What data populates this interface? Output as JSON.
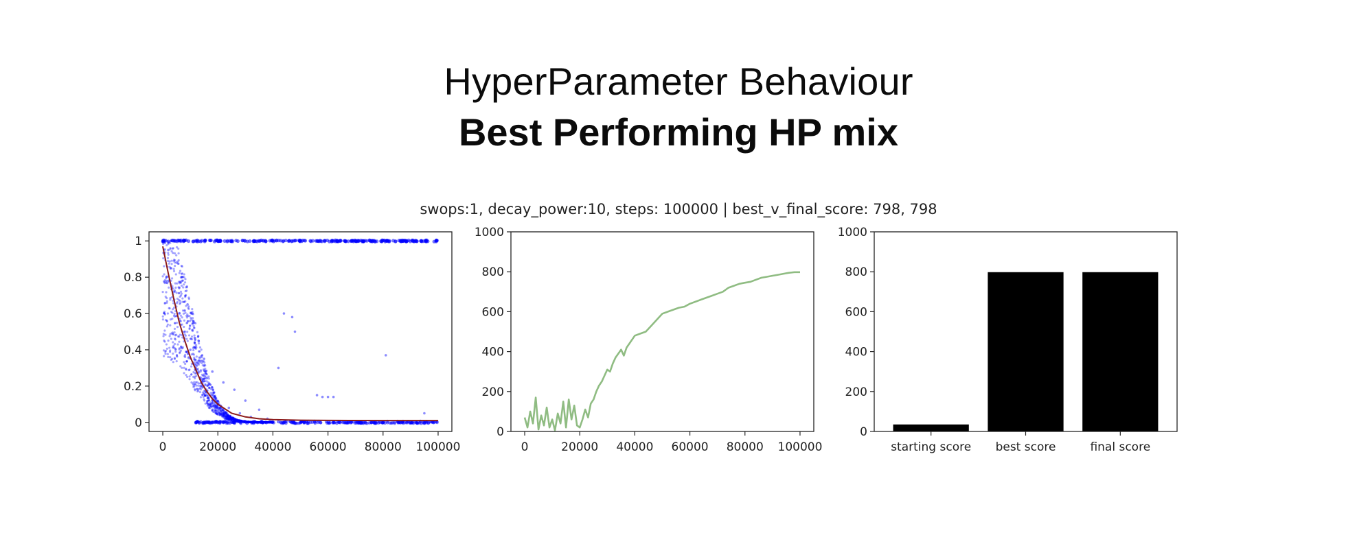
{
  "slide": {
    "title": "HyperParameter Behaviour",
    "subtitle": "Best Performing HP mix"
  },
  "chart_data": {
    "suptitle": "swops:1, decay_power:10, steps: 100000 | best_v_final_score: 798, 798",
    "panels": [
      {
        "type": "scatter",
        "title": "",
        "xlabel": "",
        "ylabel": "",
        "xlim": [
          -5000,
          105000
        ],
        "ylim": [
          -0.05,
          1.05
        ],
        "xticks": [
          0,
          20000,
          40000,
          60000,
          80000,
          100000
        ],
        "yticks": [
          0.0,
          0.2,
          0.4,
          0.6,
          0.8,
          1.0
        ],
        "colors": {
          "points": "#0000ff",
          "curve": "#8b1a1a"
        },
        "series": [
          {
            "kind": "scatter",
            "description_points": "acceptance probabilities per step; dense band at 1.0 for all x, cloud decaying from 1.0 near x=0 to 0.0 by x≈45000",
            "upper_band_y": 1.0,
            "lower_band_y": 0.0,
            "sample_points": [
              [
                2000,
                0.95
              ],
              [
                3000,
                0.85
              ],
              [
                4000,
                0.72
              ],
              [
                5000,
                0.88
              ],
              [
                6000,
                0.6
              ],
              [
                7000,
                0.78
              ],
              [
                8000,
                0.5
              ],
              [
                9000,
                0.65
              ],
              [
                10000,
                0.4
              ],
              [
                11000,
                0.55
              ],
              [
                12000,
                0.3
              ],
              [
                13000,
                0.45
              ],
              [
                14000,
                0.2
              ],
              [
                15000,
                0.35
              ],
              [
                16000,
                0.15
              ],
              [
                18000,
                0.28
              ],
              [
                20000,
                0.1
              ],
              [
                22000,
                0.22
              ],
              [
                24000,
                0.08
              ],
              [
                26000,
                0.18
              ],
              [
                28000,
                0.05
              ],
              [
                30000,
                0.12
              ],
              [
                32000,
                0.03
              ],
              [
                35000,
                0.07
              ],
              [
                38000,
                0.02
              ],
              [
                42000,
                0.3
              ],
              [
                44000,
                0.6
              ],
              [
                47000,
                0.58
              ],
              [
                48000,
                0.5
              ],
              [
                56000,
                0.15
              ],
              [
                58000,
                0.14
              ],
              [
                60000,
                0.14
              ],
              [
                62000,
                0.14
              ],
              [
                81000,
                0.37
              ],
              [
                95000,
                0.05
              ]
            ]
          },
          {
            "kind": "line",
            "name": "",
            "x": [
              0,
              2000,
              4000,
              6000,
              8000,
              10000,
              12000,
              14000,
              16000,
              18000,
              20000,
              25000,
              30000,
              35000,
              40000,
              50000,
              60000,
              80000,
              100000
            ],
            "y": [
              0.97,
              0.82,
              0.68,
              0.55,
              0.45,
              0.36,
              0.29,
              0.22,
              0.17,
              0.13,
              0.1,
              0.05,
              0.03,
              0.02,
              0.015,
              0.012,
              0.011,
              0.01,
              0.01
            ]
          }
        ]
      },
      {
        "type": "line",
        "title": "",
        "xlabel": "",
        "ylabel": "",
        "xlim": [
          -5000,
          105000
        ],
        "ylim": [
          0,
          1000
        ],
        "xticks": [
          0,
          20000,
          40000,
          60000,
          80000,
          100000
        ],
        "yticks": [
          0,
          200,
          400,
          600,
          800,
          1000
        ],
        "colors": {
          "line": "#8fbc82"
        },
        "x": [
          0,
          1000,
          2000,
          3000,
          4000,
          5000,
          6000,
          7000,
          8000,
          9000,
          10000,
          11000,
          12000,
          13000,
          14000,
          15000,
          16000,
          17000,
          18000,
          19000,
          20000,
          21000,
          22000,
          23000,
          24000,
          25000,
          26000,
          27000,
          28000,
          29000,
          30000,
          31000,
          32000,
          33000,
          34000,
          35000,
          36000,
          37000,
          38000,
          40000,
          42000,
          44000,
          46000,
          48000,
          50000,
          52000,
          54000,
          56000,
          58000,
          60000,
          62000,
          64000,
          66000,
          68000,
          70000,
          72000,
          74000,
          76000,
          78000,
          80000,
          82000,
          84000,
          86000,
          88000,
          90000,
          92000,
          94000,
          96000,
          98000,
          100000
        ],
        "y": [
          70,
          20,
          100,
          40,
          170,
          10,
          80,
          30,
          120,
          20,
          60,
          5,
          90,
          40,
          150,
          20,
          160,
          60,
          130,
          30,
          20,
          60,
          110,
          70,
          140,
          160,
          200,
          230,
          250,
          280,
          310,
          300,
          340,
          370,
          390,
          410,
          380,
          420,
          440,
          480,
          490,
          500,
          530,
          560,
          590,
          600,
          610,
          620,
          625,
          640,
          650,
          660,
          670,
          680,
          690,
          700,
          720,
          730,
          740,
          745,
          750,
          760,
          770,
          775,
          780,
          785,
          790,
          795,
          798,
          798
        ]
      },
      {
        "type": "bar",
        "title": "",
        "xlabel": "",
        "ylabel": "",
        "ylim": [
          0,
          1000
        ],
        "yticks": [
          0,
          200,
          400,
          600,
          800,
          1000
        ],
        "colors": {
          "bars": "#000000"
        },
        "categories": [
          "starting score",
          "best score",
          "final score"
        ],
        "values": [
          35,
          798,
          798
        ]
      }
    ]
  }
}
